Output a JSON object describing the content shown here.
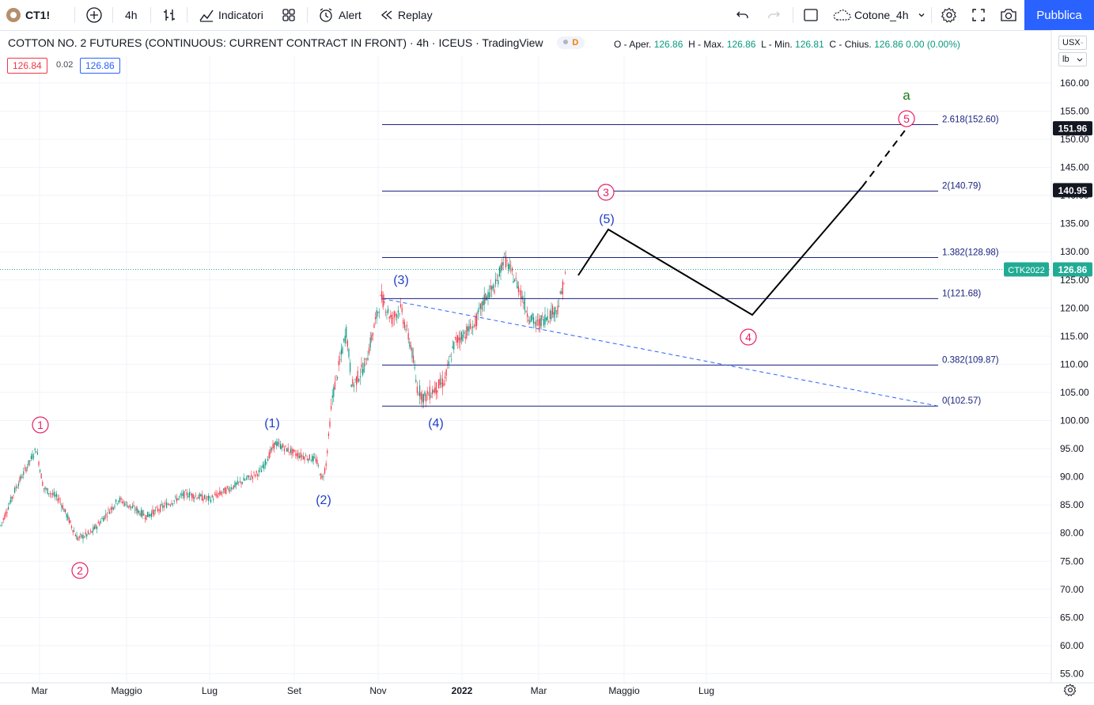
{
  "toolbar": {
    "symbol": "CT1!",
    "interval": "4h",
    "indicators": "Indicatori",
    "alert": "Alert",
    "replay": "Replay",
    "layout_name": "Cotone_4h",
    "publish": "Pubblica"
  },
  "legend": {
    "title": "COTTON NO. 2 FUTURES (CONTINUOUS: CURRENT CONTRACT IN FRONT) · 4h · ICEUS · TradingView",
    "d_badge": "D",
    "ohlc": [
      {
        "label": "O - Aper.",
        "value": "126.86"
      },
      {
        "label": "H - Max.",
        "value": "126.86"
      },
      {
        "label": "L - Min.",
        "value": "126.81"
      },
      {
        "label": "C - Chius.",
        "value": "126.86"
      }
    ],
    "change": "0.00 (0.00%)",
    "bid": "126.84",
    "spread": "0.02",
    "ask": "126.86"
  },
  "units": {
    "currency": "USX",
    "unit": "lb"
  },
  "colors": {
    "up": "#089981",
    "down": "#f23645",
    "fib": "#1a237e",
    "wave_blue": "#1e40c8",
    "wave_pink": "#e91e63",
    "accent": "#2962ff",
    "last_price": "#22ab94",
    "wave_a": "#1b7a1b"
  },
  "price_axis": {
    "ticks": [
      "160.00",
      "155.00",
      "150.00",
      "145.00",
      "140.00",
      "135.00",
      "130.00",
      "125.00",
      "120.00",
      "115.00",
      "110.00",
      "105.00",
      "100.00",
      "95.00",
      "90.00",
      "85.00",
      "80.00",
      "75.00",
      "70.00",
      "65.00",
      "60.00",
      "55.00"
    ],
    "labels": [
      {
        "text": "151.96",
        "value": 151.96,
        "style": "dark"
      },
      {
        "text": "140.95",
        "value": 140.95,
        "style": "dark"
      },
      {
        "text": "126.86",
        "value": 126.86,
        "style": "green"
      }
    ],
    "contract_label": "CTK2022"
  },
  "time_axis": [
    "Mar",
    "Maggio",
    "Lug",
    "Set",
    "Nov",
    "2022",
    "Mar",
    "Maggio",
    "Lug"
  ],
  "fib_levels": [
    {
      "label": "2.618(152.60)",
      "value": 152.6
    },
    {
      "label": "2(140.79)",
      "value": 140.79
    },
    {
      "label": "1.382(128.98)",
      "value": 128.98
    },
    {
      "label": "1(121.68)",
      "value": 121.68
    },
    {
      "label": "0.382(109.87)",
      "value": 109.87
    },
    {
      "label": "0(102.57)",
      "value": 102.57
    }
  ],
  "wave_labels": {
    "pink": [
      "1",
      "2",
      "3",
      "4",
      "5"
    ],
    "blue": [
      "(1)",
      "(2)",
      "(3)",
      "(4)",
      "(5)"
    ],
    "a": "a"
  }
}
